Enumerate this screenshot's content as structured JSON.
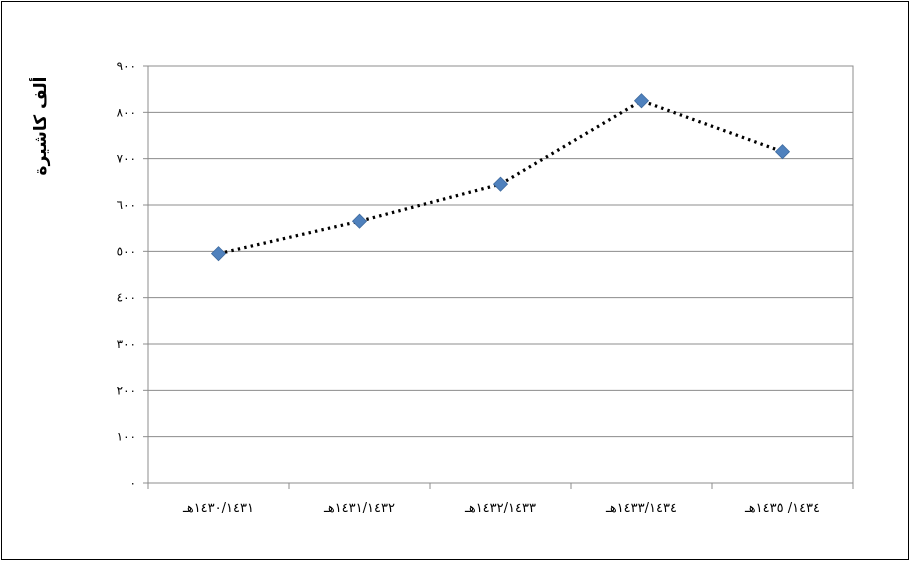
{
  "chart_data": {
    "type": "line",
    "title": "",
    "xlabel": "",
    "ylabel": "ألف كاشيرة",
    "ylim": [
      0,
      900
    ],
    "grid": true,
    "legend": "none",
    "y_ticks": [
      "٠",
      "١٠٠",
      "٢٠٠",
      "٣٠٠",
      "٤٠٠",
      "٥٠٠",
      "٦٠٠",
      "٧٠٠",
      "٨٠٠",
      "٩٠٠"
    ],
    "categories": [
      "١٤٣٠/١٤٣١هـ",
      "١٤٣١/١٤٣٢هـ",
      "١٤٣٢/١٤٣٣هـ",
      "١٤٣٣/١٤٣٤هـ",
      "١٤٣٤/ ١٤٣٥هـ"
    ],
    "series": [
      {
        "values": [
          495,
          565,
          645,
          825,
          715
        ],
        "color": "#4f81bd",
        "line_style": "dotted",
        "line_color": "#000000",
        "marker": "diamond"
      }
    ]
  }
}
